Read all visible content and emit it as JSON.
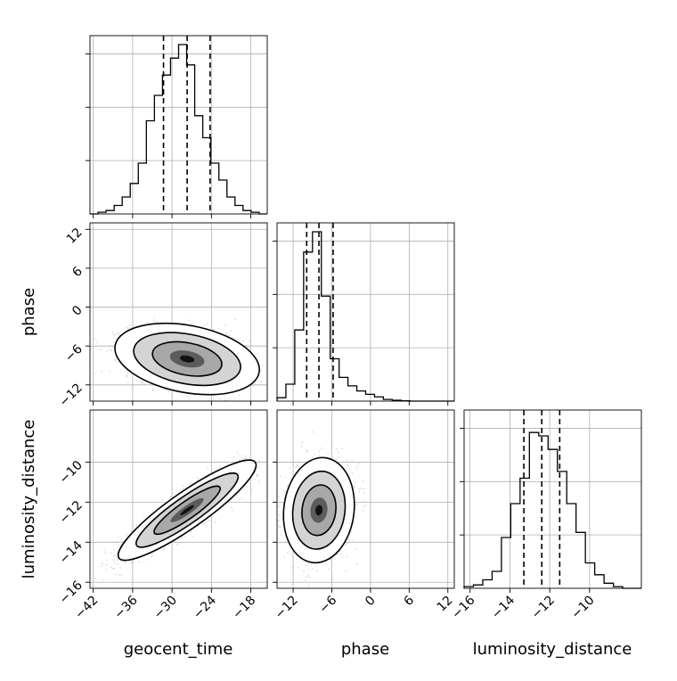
{
  "chart_data": {
    "type": "corner",
    "parameters": [
      "geocent_time",
      "phase",
      "luminosity_distance"
    ],
    "ticks": {
      "geocent_time": [
        "−42",
        "−36",
        "−30",
        "−24",
        "−18"
      ],
      "phase": [
        "−12",
        "−6",
        "0",
        "6",
        "12"
      ],
      "luminosity_distance_lower": [
        "−16",
        "−14",
        "−12",
        "−10"
      ],
      "luminosity_distance_diag": [
        "−16",
        "−14",
        "−12",
        "−10"
      ]
    },
    "ranges": {
      "geocent_time": [
        -42.5,
        -15.5
      ],
      "phase": [
        -14.5,
        13
      ],
      "luminosity_distance": [
        -16.3,
        -7.4
      ]
    },
    "grid": true,
    "hist_color": "#000000",
    "quantiles": {
      "geocent_time": [
        -31.3,
        -27.7,
        -24.2
      ],
      "phase": [
        -9.9,
        -8.0,
        -5.8
      ],
      "luminosity_distance": [
        -13.3,
        -12.4,
        -11.5
      ]
    },
    "histograms": {
      "geocent_time": {
        "range": [
          -42.5,
          -15.5
        ],
        "counts": [
          0,
          0.01,
          0.02,
          0.05,
          0.1,
          0.18,
          0.3,
          0.55,
          0.7,
          0.82,
          0.92,
          1.0,
          0.88,
          0.58,
          0.45,
          0.3,
          0.2,
          0.1,
          0.05,
          0.02,
          0.01,
          0
        ]
      },
      "phase": {
        "range": [
          -14.5,
          13
        ],
        "counts": [
          0.02,
          0.1,
          0.42,
          0.88,
          1.0,
          0.62,
          0.25,
          0.14,
          0.09,
          0.06,
          0.04,
          0.025,
          0.01,
          0.005,
          0.002,
          0,
          0,
          0,
          0,
          0
        ]
      },
      "luminosity_distance": {
        "range": [
          -16.3,
          -7.4
        ],
        "counts": [
          0.01,
          0.02,
          0.05,
          0.1,
          0.3,
          0.5,
          0.65,
          0.92,
          0.9,
          0.82,
          0.69,
          0.5,
          0.33,
          0.15,
          0.08,
          0.03,
          0.01,
          0,
          0
        ]
      }
    },
    "posteriors": {
      "phase_vs_geocent_time": {
        "mean": [
          -27.7,
          -8.0
        ],
        "sd": [
          4.4,
          2.2
        ],
        "corr": -0.3
      },
      "luminosity_distance_vs_geocent_time": {
        "mean": [
          -27.7,
          -12.4
        ],
        "sd": [
          4.2,
          1.0
        ],
        "corr": 0.9
      },
      "luminosity_distance_vs_phase": {
        "mean": [
          -8.0,
          -12.4
        ],
        "sd": [
          2.2,
          1.05
        ],
        "corr": 0.1
      }
    }
  }
}
